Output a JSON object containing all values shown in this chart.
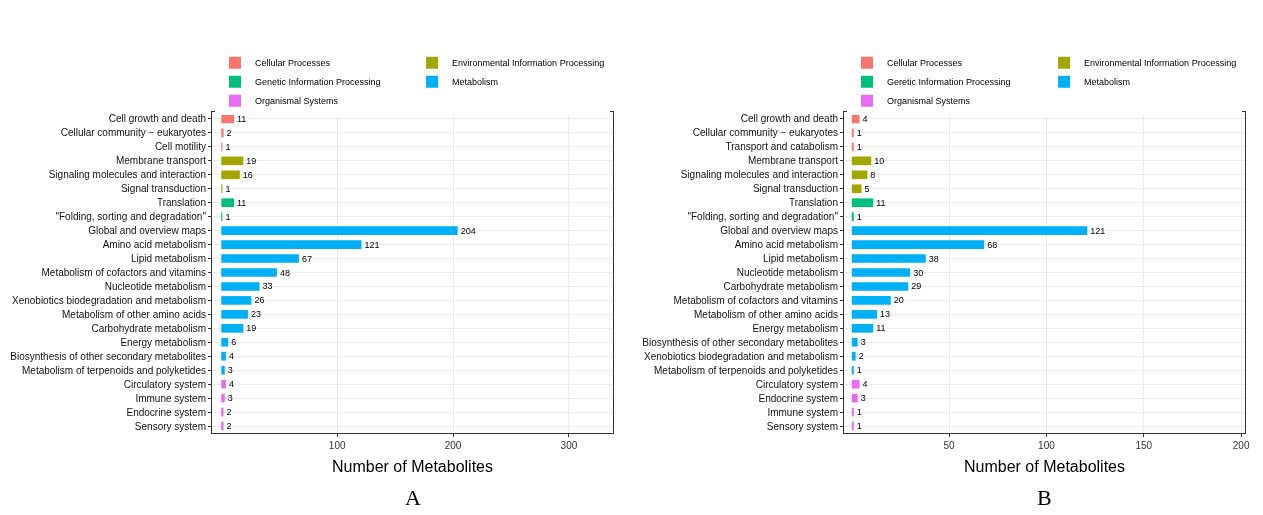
{
  "chart_data": [
    {
      "type": "bar",
      "orientation": "horizontal",
      "xlabel": "Number of Metabolites",
      "legend": "top",
      "grid": true,
      "data_labels": true,
      "xlim": [
        -8,
        338
      ],
      "xticks": [
        100,
        200,
        300
      ],
      "annotations": [
        "A"
      ],
      "categories": [
        "Cell growth and death",
        "Cellular community − eukaryotes",
        "Cell motility",
        "Membrane transport",
        "Signaling molecules and interaction",
        "Signal transduction",
        "Translation",
        "\"Folding, sorting and degradation\"",
        "Global and overview maps",
        "Amino acid metabolism",
        "Lipid metabolism",
        "Metabolism of cofactors and vitamins",
        "Nucleotide metabolism",
        "Xenobiotics biodegradation and metabolism",
        "Metabolism of other amino acids",
        "Carbohydrate metabolism",
        "Energy metabolism",
        "Biosynthesis of other secondary metabolites",
        "Metabolism of terpenoids and polyketides",
        "Circulatory system",
        "Immune system",
        "Endocrine system",
        "Sensory system"
      ],
      "series": [
        {
          "name": "Cellular Processes",
          "color": "#f8766d",
          "values": [
            11,
            2,
            1,
            null,
            null,
            null,
            null,
            null,
            null,
            null,
            null,
            null,
            null,
            null,
            null,
            null,
            null,
            null,
            null,
            null,
            null,
            null,
            null
          ]
        },
        {
          "name": "Environmental Information Processing",
          "color": "#a3a500",
          "values": [
            null,
            null,
            null,
            19,
            16,
            1,
            null,
            null,
            null,
            null,
            null,
            null,
            null,
            null,
            null,
            null,
            null,
            null,
            null,
            null,
            null,
            null,
            null
          ]
        },
        {
          "name": "Genetic Information Processing",
          "color": "#00bf7d",
          "values": [
            null,
            null,
            null,
            null,
            null,
            null,
            11,
            1,
            null,
            null,
            null,
            null,
            null,
            null,
            null,
            null,
            null,
            null,
            null,
            null,
            null,
            null,
            null
          ]
        },
        {
          "name": "Metabolism",
          "color": "#00b0f6",
          "values": [
            null,
            null,
            null,
            null,
            null,
            null,
            null,
            null,
            204,
            121,
            67,
            48,
            33,
            26,
            23,
            19,
            6,
            4,
            3,
            null,
            null,
            null,
            null
          ]
        },
        {
          "name": "Organismal Systems",
          "color": "#e76bf3",
          "values": [
            null,
            null,
            null,
            null,
            null,
            null,
            null,
            null,
            null,
            null,
            null,
            null,
            null,
            null,
            null,
            null,
            null,
            null,
            null,
            4,
            3,
            2,
            2
          ]
        }
      ]
    },
    {
      "type": "bar",
      "orientation": "horizontal",
      "xlabel": "Number of Metabolites",
      "legend": "top",
      "grid": true,
      "data_labels": true,
      "xlim": [
        -4,
        202
      ],
      "xticks": [
        50,
        100,
        150,
        200
      ],
      "annotations": [
        "B"
      ],
      "categories": [
        "Cell growth and death",
        "Cellular community − eukaryotes",
        "Transport and catabolism",
        "Membrane transport",
        "Signaling molecules and interaction",
        "Signal transduction",
        "Translation",
        "\"Folding, sorting and degradation\"",
        "Global and overview maps",
        "Amino acid metabolism",
        "Lipid metabolism",
        "Nucleotide metabolism",
        "Carbohydrate metabolism",
        "Metabolism of cofactors and vitamins",
        "Metabolism of other amino acids",
        "Energy metabolism",
        "Biosynthesis of other secondary metabolites",
        "Xenobiotics biodegradation and metabolism",
        "Metabolism of terpenoids and polyketides",
        "Circulatory system",
        "Endocrine system",
        "Immune system",
        "Sensory system"
      ],
      "series": [
        {
          "name": "Cellular Processes",
          "color": "#f8766d",
          "values": [
            4,
            1,
            1,
            null,
            null,
            null,
            null,
            null,
            null,
            null,
            null,
            null,
            null,
            null,
            null,
            null,
            null,
            null,
            null,
            null,
            null,
            null,
            null
          ]
        },
        {
          "name": "Environmental Information Processing",
          "color": "#a3a500",
          "values": [
            null,
            null,
            null,
            10,
            8,
            5,
            null,
            null,
            null,
            null,
            null,
            null,
            null,
            null,
            null,
            null,
            null,
            null,
            null,
            null,
            null,
            null,
            null
          ]
        },
        {
          "name": "Geretic Information Processing",
          "color": "#00bf7d",
          "values": [
            null,
            null,
            null,
            null,
            null,
            null,
            11,
            1,
            null,
            null,
            null,
            null,
            null,
            null,
            null,
            null,
            null,
            null,
            null,
            null,
            null,
            null,
            null
          ]
        },
        {
          "name": "Metabolism",
          "color": "#00b0f6",
          "values": [
            null,
            null,
            null,
            null,
            null,
            null,
            null,
            null,
            121,
            68,
            38,
            30,
            29,
            20,
            13,
            11,
            3,
            2,
            1,
            null,
            null,
            null,
            null
          ]
        },
        {
          "name": "Organismal Systems",
          "color": "#e76bf3",
          "values": [
            null,
            null,
            null,
            null,
            null,
            null,
            null,
            null,
            null,
            null,
            null,
            null,
            null,
            null,
            null,
            null,
            null,
            null,
            null,
            4,
            3,
            1,
            1
          ]
        }
      ]
    }
  ]
}
